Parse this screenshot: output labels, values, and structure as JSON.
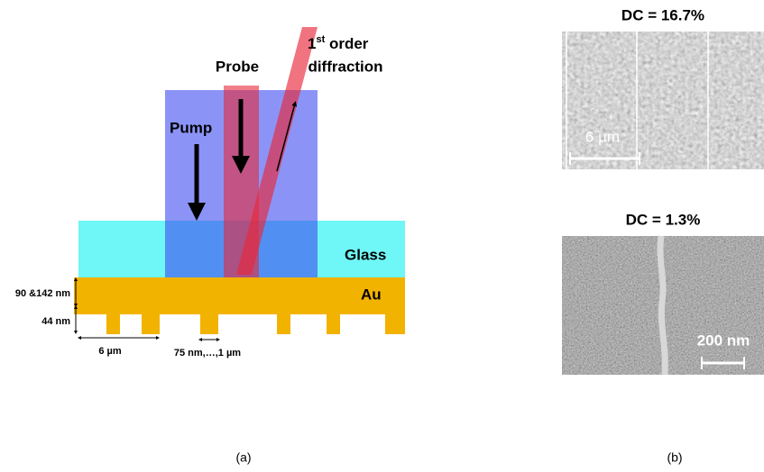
{
  "panel_a": {
    "labels": {
      "probe": "Probe",
      "diffraction_number": "1",
      "diffraction_suffix": "st",
      "diffraction_rest": " order",
      "diffraction_line2": "diffraction",
      "pump": "Pump",
      "glass": "Glass",
      "au": "Au",
      "thickness_top": "90 &142 nm",
      "thickness_bottom": "44 nm",
      "period": "6 µm",
      "width": "75 nm,…,1 µm"
    },
    "caption": "(a)"
  },
  "panel_b": {
    "top": {
      "title": "DC = 16.7%",
      "scale_bar": "6 µm"
    },
    "bottom": {
      "title": "DC = 1.3%",
      "scale_bar": "200 nm"
    },
    "caption": "(b)"
  }
}
